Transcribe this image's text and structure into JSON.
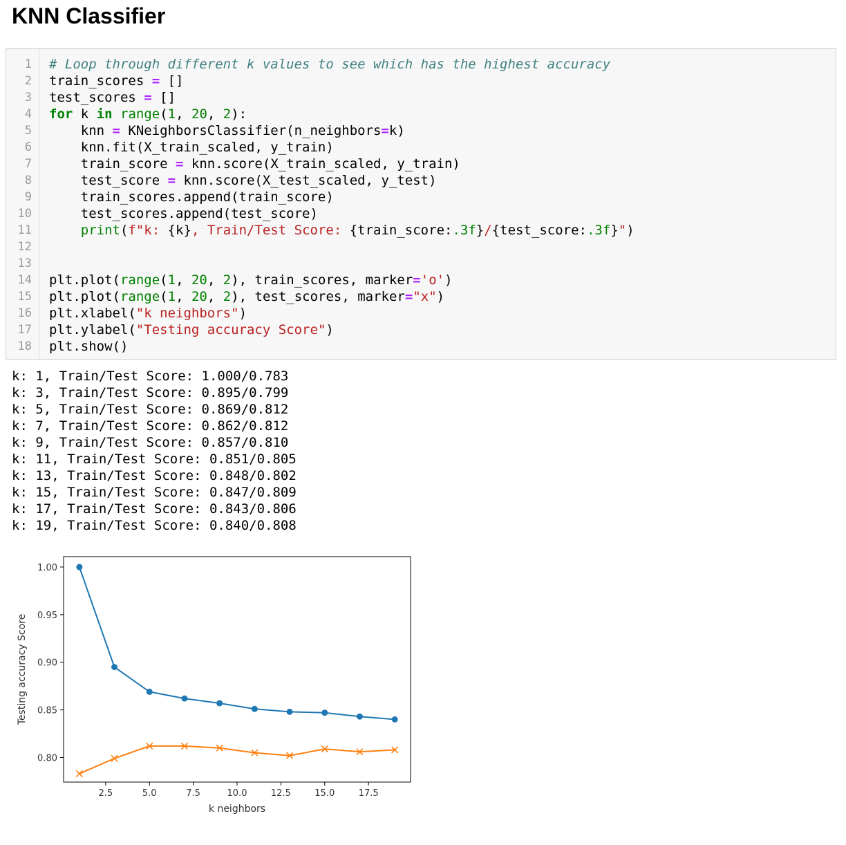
{
  "heading": "KNN Classifier",
  "code_lines": [
    [
      {
        "t": "# Loop through different k values to see which has the highest accuracy",
        "c": "cm"
      }
    ],
    [
      {
        "t": "train_scores "
      },
      {
        "t": "=",
        "c": "op"
      },
      {
        "t": " []"
      }
    ],
    [
      {
        "t": "test_scores "
      },
      {
        "t": "=",
        "c": "op"
      },
      {
        "t": " []"
      }
    ],
    [
      {
        "t": "for",
        "c": "kw"
      },
      {
        "t": " k "
      },
      {
        "t": "in",
        "c": "kw"
      },
      {
        "t": " "
      },
      {
        "t": "range",
        "c": "bi"
      },
      {
        "t": "("
      },
      {
        "t": "1",
        "c": "nm"
      },
      {
        "t": ", "
      },
      {
        "t": "20",
        "c": "nm"
      },
      {
        "t": ", "
      },
      {
        "t": "2",
        "c": "nm"
      },
      {
        "t": "):"
      }
    ],
    [
      {
        "t": "    knn "
      },
      {
        "t": "=",
        "c": "op"
      },
      {
        "t": " KNeighborsClassifier(n_neighbors"
      },
      {
        "t": "=",
        "c": "op"
      },
      {
        "t": "k)"
      }
    ],
    [
      {
        "t": "    knn.fit(X_train_scaled, y_train)"
      }
    ],
    [
      {
        "t": "    train_score "
      },
      {
        "t": "=",
        "c": "op"
      },
      {
        "t": " knn.score(X_train_scaled, y_train)"
      }
    ],
    [
      {
        "t": "    test_score "
      },
      {
        "t": "=",
        "c": "op"
      },
      {
        "t": " knn.score(X_test_scaled, y_test)"
      }
    ],
    [
      {
        "t": "    train_scores.append(train_score)"
      }
    ],
    [
      {
        "t": "    test_scores.append(test_score)"
      }
    ],
    [
      {
        "t": "    "
      },
      {
        "t": "print",
        "c": "bi"
      },
      {
        "t": "("
      },
      {
        "t": "f\"k: ",
        "c": "st"
      },
      {
        "t": "{k}",
        "c": "si"
      },
      {
        "t": ", Train/Test Score: ",
        "c": "st"
      },
      {
        "t": "{train_score:",
        "c": "si"
      },
      {
        "t": ".3f",
        "c": "nm"
      },
      {
        "t": "}",
        "c": "si"
      },
      {
        "t": "/",
        "c": "st"
      },
      {
        "t": "{test_score:",
        "c": "si"
      },
      {
        "t": ".3f",
        "c": "nm"
      },
      {
        "t": "}",
        "c": "si"
      },
      {
        "t": "\"",
        "c": "st"
      },
      {
        "t": ")"
      }
    ],
    [],
    [],
    [
      {
        "t": "plt.plot("
      },
      {
        "t": "range",
        "c": "bi"
      },
      {
        "t": "("
      },
      {
        "t": "1",
        "c": "nm"
      },
      {
        "t": ", "
      },
      {
        "t": "20",
        "c": "nm"
      },
      {
        "t": ", "
      },
      {
        "t": "2",
        "c": "nm"
      },
      {
        "t": "), train_scores, marker"
      },
      {
        "t": "=",
        "c": "op"
      },
      {
        "t": "'o'",
        "c": "st"
      },
      {
        "t": ")"
      }
    ],
    [
      {
        "t": "plt.plot("
      },
      {
        "t": "range",
        "c": "bi"
      },
      {
        "t": "("
      },
      {
        "t": "1",
        "c": "nm"
      },
      {
        "t": ", "
      },
      {
        "t": "20",
        "c": "nm"
      },
      {
        "t": ", "
      },
      {
        "t": "2",
        "c": "nm"
      },
      {
        "t": "), test_scores, marker"
      },
      {
        "t": "=",
        "c": "op"
      },
      {
        "t": "\"x\"",
        "c": "st"
      },
      {
        "t": ")"
      }
    ],
    [
      {
        "t": "plt.xlabel("
      },
      {
        "t": "\"k neighbors\"",
        "c": "st"
      },
      {
        "t": ")"
      }
    ],
    [
      {
        "t": "plt.ylabel("
      },
      {
        "t": "\"Testing accuracy Score\"",
        "c": "st"
      },
      {
        "t": ")"
      }
    ],
    [
      {
        "t": "plt.show()"
      }
    ]
  ],
  "output_lines": [
    "k: 1, Train/Test Score: 1.000/0.783",
    "k: 3, Train/Test Score: 0.895/0.799",
    "k: 5, Train/Test Score: 0.869/0.812",
    "k: 7, Train/Test Score: 0.862/0.812",
    "k: 9, Train/Test Score: 0.857/0.810",
    "k: 11, Train/Test Score: 0.851/0.805",
    "k: 13, Train/Test Score: 0.848/0.802",
    "k: 15, Train/Test Score: 0.847/0.809",
    "k: 17, Train/Test Score: 0.843/0.806",
    "k: 19, Train/Test Score: 0.840/0.808"
  ],
  "chart_data": {
    "type": "line",
    "x": [
      1,
      3,
      5,
      7,
      9,
      11,
      13,
      15,
      17,
      19
    ],
    "series": [
      {
        "values": [
          1.0,
          0.895,
          0.869,
          0.862,
          0.857,
          0.851,
          0.848,
          0.847,
          0.843,
          0.84
        ],
        "marker": "o",
        "color": "#1f77b4"
      },
      {
        "values": [
          0.783,
          0.799,
          0.812,
          0.812,
          0.81,
          0.805,
          0.802,
          0.809,
          0.806,
          0.808
        ],
        "marker": "x",
        "color": "#ff7f0e"
      }
    ],
    "xlabel": "k neighbors",
    "ylabel": "Testing accuracy Score",
    "xticks": [
      "2.5",
      "5.0",
      "7.5",
      "10.0",
      "12.5",
      "15.0",
      "17.5"
    ],
    "yticks": [
      "0.80",
      "0.85",
      "0.90",
      "0.95",
      "1.00"
    ],
    "xlim": [
      0.1,
      19.9
    ],
    "ylim": [
      0.7742,
      1.0109
    ],
    "grid": false,
    "legend": false
  }
}
